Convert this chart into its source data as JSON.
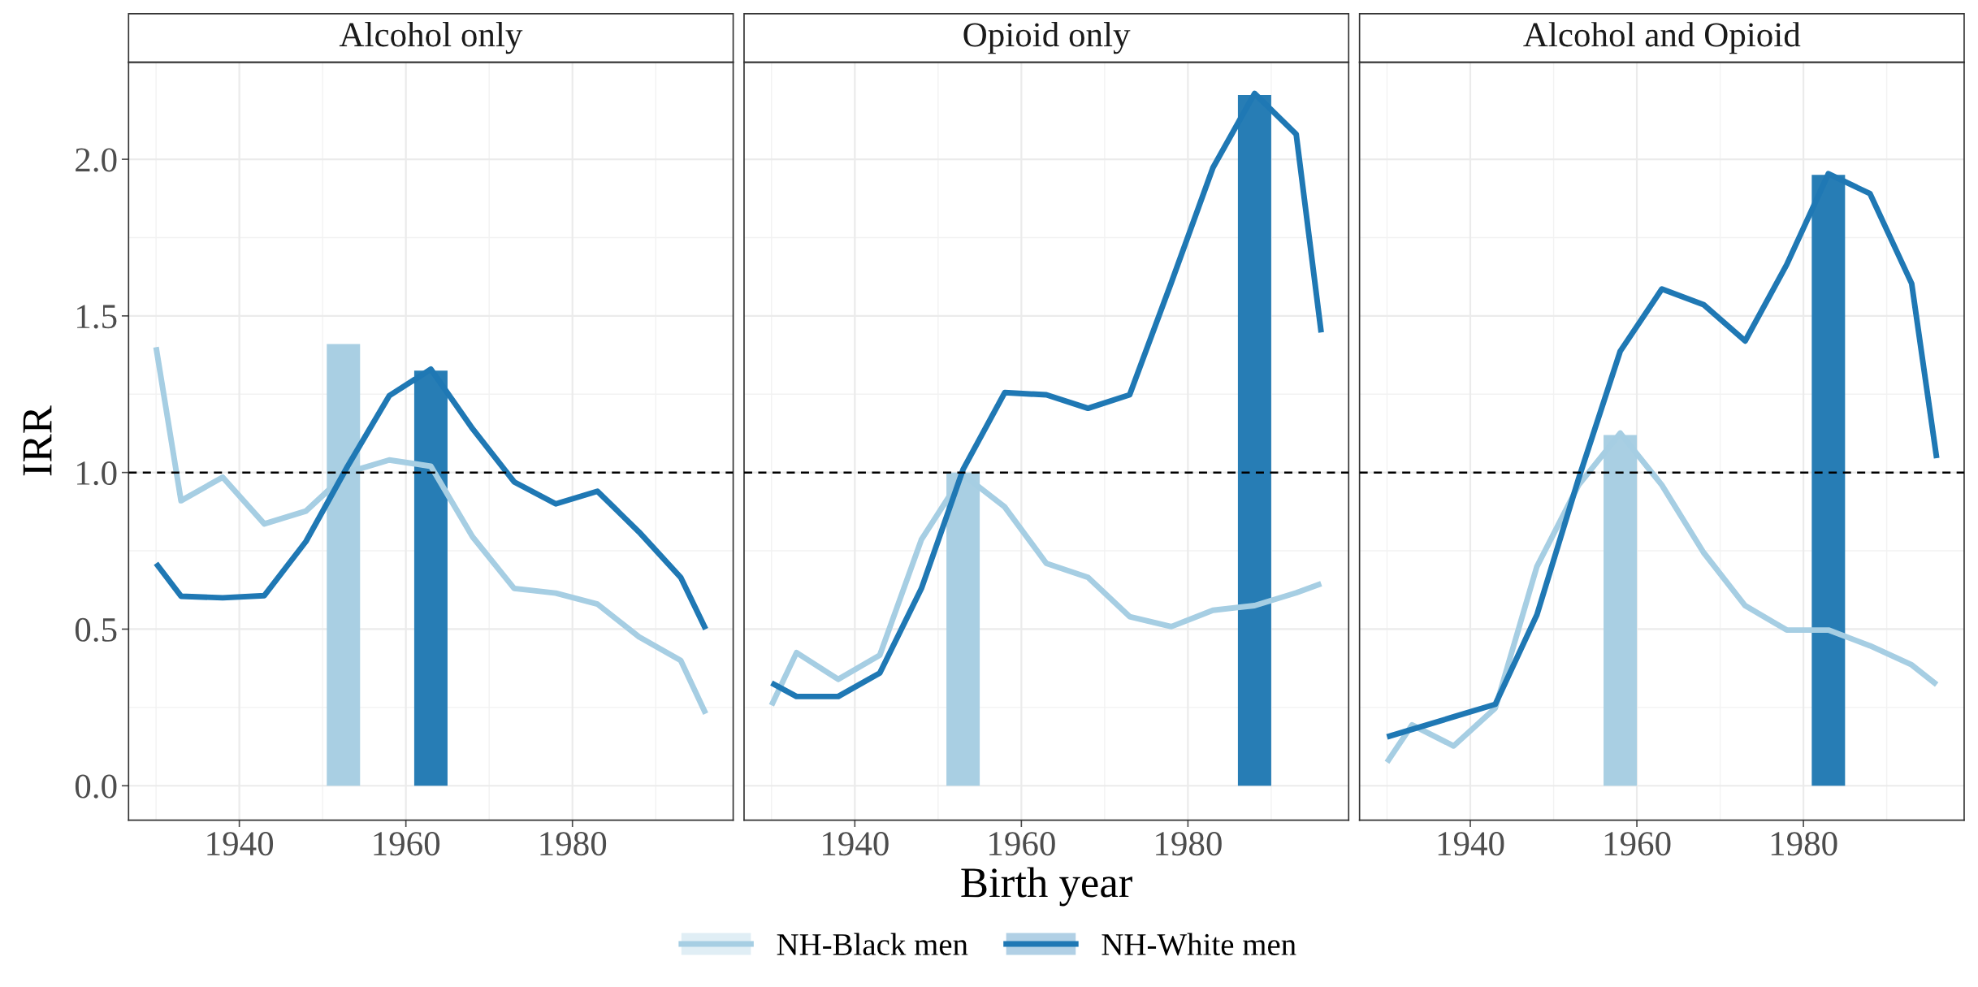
{
  "chart_data": [
    {
      "type": "line",
      "title": "Alcohol only",
      "ylabel": "IRR",
      "xlim": [
        1926.7,
        1999.3
      ],
      "ylim": [
        -0.11,
        2.31
      ],
      "xticks": [
        1940,
        1960,
        1980
      ],
      "yticks": [
        {
          "value": 0,
          "label": "0.0"
        },
        {
          "value": 0.5,
          "label": "0.5"
        },
        {
          "value": 1,
          "label": "1.0"
        },
        {
          "value": 1.5,
          "label": "1.5"
        },
        {
          "value": 2,
          "label": "2.0"
        }
      ],
      "grid": true,
      "legend": "bottom",
      "x": [
        1930,
        1933,
        1938,
        1943,
        1948,
        1953,
        1958,
        1963,
        1968,
        1973,
        1978,
        1983,
        1988,
        1993,
        1996
      ],
      "ref_lines": [
        {
          "axis": "y",
          "value": 1,
          "color": "#000000",
          "line_style": "dashed"
        }
      ],
      "series": [
        {
          "type": "bar",
          "color": "#a9cfe3",
          "x": [
            1952.5
          ],
          "values": [
            1.41
          ]
        },
        {
          "type": "bar",
          "color": "#277db5",
          "x": [
            1963
          ],
          "values": [
            1.325
          ]
        },
        {
          "name": "NH-Black men",
          "color": "#a6cee3",
          "values": [
            1.4,
            0.91,
            0.985,
            0.836,
            0.877,
            1.0,
            1.04,
            1.02,
            0.795,
            0.63,
            0.615,
            0.58,
            0.475,
            0.4,
            0.23
          ]
        },
        {
          "name": "NH-White men",
          "color": "#1f78b4",
          "values": [
            0.71,
            0.605,
            0.6,
            0.607,
            0.78,
            1.02,
            1.245,
            1.33,
            1.14,
            0.97,
            0.9,
            0.94,
            0.81,
            0.665,
            0.5
          ]
        }
      ]
    },
    {
      "type": "line",
      "title": "Opioid only",
      "xlabel": "Birth year",
      "xlim": [
        1926.7,
        1999.3
      ],
      "ylim": [
        -0.11,
        2.31
      ],
      "xticks": [
        1940,
        1960,
        1980
      ],
      "yticks": [
        {
          "value": 0,
          "label": null
        },
        {
          "value": 0.5,
          "label": null
        },
        {
          "value": 1,
          "label": null
        },
        {
          "value": 1.5,
          "label": null
        },
        {
          "value": 2,
          "label": null
        }
      ],
      "grid": true,
      "tick_labels": "x",
      "x": [
        1930,
        1933,
        1938,
        1943,
        1948,
        1953,
        1958,
        1963,
        1968,
        1973,
        1978,
        1983,
        1988,
        1993,
        1996
      ],
      "ref_lines": [
        {
          "axis": "y",
          "value": 1,
          "color": "#000000",
          "line_style": "dashed"
        }
      ],
      "series": [
        {
          "type": "bar",
          "color": "#a9cfe3",
          "x": [
            1953
          ],
          "values": [
            1.0
          ]
        },
        {
          "type": "bar",
          "color": "#277db5",
          "x": [
            1988
          ],
          "values": [
            2.205
          ]
        },
        {
          "color": "#a6cee3",
          "values": [
            0.257,
            0.425,
            0.34,
            0.417,
            0.786,
            0.993,
            0.89,
            0.71,
            0.665,
            0.54,
            0.508,
            0.56,
            0.575,
            0.616,
            0.645
          ]
        },
        {
          "color": "#1f78b4",
          "values": [
            0.328,
            0.285,
            0.285,
            0.36,
            0.63,
            1.01,
            1.255,
            1.248,
            1.205,
            1.248,
            1.606,
            1.973,
            2.21,
            2.08,
            1.447
          ]
        }
      ]
    },
    {
      "type": "line",
      "title": "Alcohol and Opioid",
      "xlim": [
        1926.7,
        1999.3
      ],
      "ylim": [
        -0.11,
        2.31
      ],
      "xticks": [
        1940,
        1960,
        1980
      ],
      "yticks": [
        {
          "value": 0,
          "label": null
        },
        {
          "value": 0.5,
          "label": null
        },
        {
          "value": 1,
          "label": null
        },
        {
          "value": 1.5,
          "label": null
        },
        {
          "value": 2,
          "label": null
        }
      ],
      "grid": true,
      "tick_labels": "x",
      "x": [
        1930,
        1933,
        1938,
        1943,
        1948,
        1953,
        1958,
        1963,
        1968,
        1973,
        1978,
        1983,
        1988,
        1993,
        1996
      ],
      "ref_lines": [
        {
          "axis": "y",
          "value": 1,
          "color": "#000000",
          "line_style": "dashed"
        }
      ],
      "series": [
        {
          "type": "bar",
          "color": "#a9cfe3",
          "x": [
            1958
          ],
          "values": [
            1.12
          ]
        },
        {
          "type": "bar",
          "color": "#277db5",
          "x": [
            1983
          ],
          "values": [
            1.95
          ]
        },
        {
          "color": "#a6cee3",
          "values": [
            0.075,
            0.194,
            0.127,
            0.248,
            0.7,
            0.96,
            1.126,
            0.96,
            0.745,
            0.575,
            0.497,
            0.497,
            0.447,
            0.386,
            0.323
          ]
        },
        {
          "color": "#1f78b4",
          "values": [
            0.156,
            0.18,
            0.22,
            0.26,
            0.546,
            0.98,
            1.387,
            1.586,
            1.536,
            1.42,
            1.664,
            1.954,
            1.89,
            1.603,
            1.046
          ]
        }
      ]
    }
  ]
}
